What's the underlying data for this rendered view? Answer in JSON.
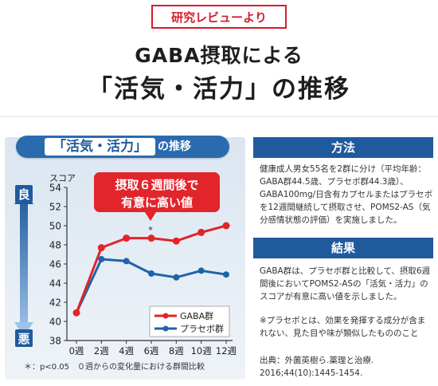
{
  "header": {
    "badge": "研究レビューより",
    "title_line1": "GABA摂取による",
    "title_line2": "「活気・活力」の推移"
  },
  "chart_panel": {
    "head_label": "「活気・活力」",
    "head_suffix": "の推移",
    "axis_unit": "スコア",
    "top_marker": "良",
    "bottom_marker": "悪",
    "callout_line1": "摂取６週間後で",
    "callout_line2": "有意に高い値",
    "significance_mark": "*",
    "footnote": "＊：p<0.05　０週からの変化量における群間比較"
  },
  "chart_data": {
    "type": "line",
    "x": [
      "0週",
      "2週",
      "4週",
      "6週",
      "8週",
      "10週",
      "12週"
    ],
    "series": [
      {
        "name": "GABA群",
        "color": "#e2242b",
        "values": [
          40.9,
          47.7,
          48.7,
          48.7,
          48.4,
          49.3,
          50.0
        ]
      },
      {
        "name": "プラセボ群",
        "color": "#1f63aa",
        "values": [
          40.9,
          46.5,
          46.3,
          45.0,
          44.6,
          45.3,
          44.9
        ]
      }
    ],
    "ylim": [
      38,
      54
    ],
    "yticks": [
      "54",
      "52",
      "50",
      "48",
      "46",
      "44",
      "42",
      "40",
      "38"
    ],
    "ylabel": "スコア",
    "legend_position": "bottom-right",
    "grid": false
  },
  "method": {
    "heading": "方法",
    "body": "健康成人男女55名を2群に分け（平均年齢：GABA群44.5歳、プラセボ群44.3歳）、GABA100mg/日含有カプセルまたはプラセボを12週間継続して摂取させ、POMS2-AS（気分感情状態の評価）を実施しました。"
  },
  "result": {
    "heading": "結果",
    "body": "GABA群は、プラセボ群と比較して、摂取6週間後においてPOMS2-ASの「活気・活力」のスコアが有意に高い値を示しました。",
    "note": "※プラセボとは、効果を発揮する成分が含まれない、見た目や味が類似したもののこと",
    "source": "出典：外薗英樹ら.薬理と治療. 2016;44(10):1445-1454."
  }
}
